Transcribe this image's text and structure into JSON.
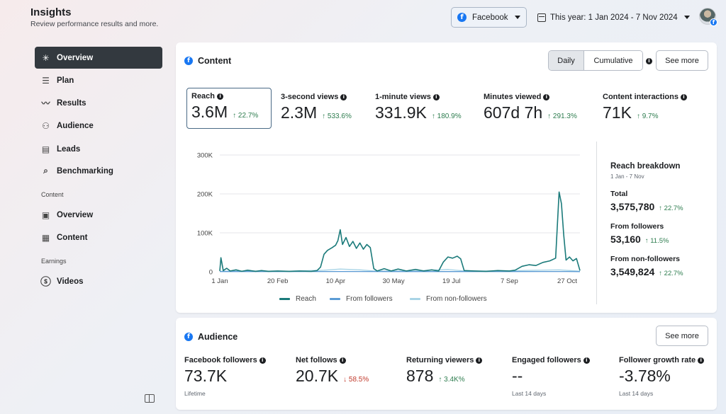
{
  "header": {
    "title": "Insights",
    "subtitle": "Review performance results and more.",
    "platform": "Facebook",
    "date_range": "This year: 1 Jan 2024 - 7 Nov 2024"
  },
  "sidebar": {
    "items": [
      {
        "label": "Overview",
        "icon": "overview-icon",
        "active": true
      },
      {
        "label": "Plan",
        "icon": "plan-icon"
      },
      {
        "label": "Results",
        "icon": "results-icon"
      },
      {
        "label": "Audience",
        "icon": "audience-icon"
      },
      {
        "label": "Leads",
        "icon": "leads-icon"
      },
      {
        "label": "Benchmarking",
        "icon": "benchmarking-icon"
      }
    ],
    "section_content": "Content",
    "content_items": [
      {
        "label": "Overview",
        "icon": "content-overview-icon"
      },
      {
        "label": "Content",
        "icon": "table-icon"
      }
    ],
    "section_earnings": "Earnings",
    "earnings_items": [
      {
        "label": "Videos",
        "icon": "dollar-icon"
      }
    ]
  },
  "content_card": {
    "title": "Content",
    "toggle": {
      "daily": "Daily",
      "cumulative": "Cumulative",
      "selected": "Daily"
    },
    "see_more": "See more",
    "metrics": [
      {
        "label": "Reach",
        "value": "3.6M",
        "delta": "↑ 22.7%",
        "direction": "up"
      },
      {
        "label": "3-second views",
        "value": "2.3M",
        "delta": "↑ 533.6%",
        "direction": "up"
      },
      {
        "label": "1-minute views",
        "value": "331.9K",
        "delta": "↑ 180.9%",
        "direction": "up"
      },
      {
        "label": "Minutes viewed",
        "value": "607d 7h",
        "delta": "↑ 291.3%",
        "direction": "up"
      },
      {
        "label": "Content interactions",
        "value": "71K",
        "delta": "↑ 9.7%",
        "direction": "up"
      }
    ],
    "breakdown": {
      "title": "Reach breakdown",
      "date": "1 Jan - 7 Nov",
      "rows": [
        {
          "label": "Total",
          "value": "3,575,780",
          "delta": "↑ 22.7%"
        },
        {
          "label": "From followers",
          "value": "53,160",
          "delta": "↑ 11.5%"
        },
        {
          "label": "From non-followers",
          "value": "3,549,824",
          "delta": "↑ 22.7%"
        }
      ]
    }
  },
  "chart_data": {
    "type": "line",
    "title": "",
    "xlabel": "",
    "ylabel": "",
    "ylim": [
      0,
      300000
    ],
    "y_ticks": [
      0,
      100000,
      200000,
      300000
    ],
    "y_tick_labels": [
      "0",
      "100K",
      "200K",
      "300K"
    ],
    "x_ticks": [
      "2024-01-01",
      "2024-02-20",
      "2024-04-10",
      "2024-05-30",
      "2024-07-19",
      "2024-09-07",
      "2024-10-27"
    ],
    "x_tick_labels": [
      "1 Jan",
      "20 Feb",
      "10 Apr",
      "30 May",
      "19 Jul",
      "7 Sep",
      "27 Oct"
    ],
    "x_range": [
      "2024-01-01",
      "2024-11-07"
    ],
    "grid": true,
    "legend_position": "bottom",
    "series": [
      {
        "name": "Reach",
        "color": "#1a7a7a",
        "points": [
          [
            "2024-01-01",
            2000
          ],
          [
            "2024-01-02",
            36000
          ],
          [
            "2024-01-04",
            3000
          ],
          [
            "2024-01-07",
            9000
          ],
          [
            "2024-01-10",
            2000
          ],
          [
            "2024-01-15",
            5000
          ],
          [
            "2024-01-20",
            1000
          ],
          [
            "2024-01-25",
            4000
          ],
          [
            "2024-02-01",
            1000
          ],
          [
            "2024-02-06",
            3000
          ],
          [
            "2024-02-12",
            1000
          ],
          [
            "2024-02-20",
            2000
          ],
          [
            "2024-03-01",
            1000
          ],
          [
            "2024-03-10",
            2000
          ],
          [
            "2024-03-20",
            1000
          ],
          [
            "2024-03-25",
            3000
          ],
          [
            "2024-03-28",
            12000
          ],
          [
            "2024-03-31",
            45000
          ],
          [
            "2024-04-03",
            55000
          ],
          [
            "2024-04-07",
            62000
          ],
          [
            "2024-04-10",
            68000
          ],
          [
            "2024-04-12",
            80000
          ],
          [
            "2024-04-14",
            108000
          ],
          [
            "2024-04-16",
            70000
          ],
          [
            "2024-04-19",
            88000
          ],
          [
            "2024-04-22",
            65000
          ],
          [
            "2024-04-25",
            78000
          ],
          [
            "2024-04-28",
            60000
          ],
          [
            "2024-05-01",
            74000
          ],
          [
            "2024-05-04",
            58000
          ],
          [
            "2024-05-07",
            70000
          ],
          [
            "2024-05-10",
            62000
          ],
          [
            "2024-05-13",
            8000
          ],
          [
            "2024-05-16",
            2000
          ],
          [
            "2024-05-22",
            8000
          ],
          [
            "2024-05-28",
            2000
          ],
          [
            "2024-06-03",
            7000
          ],
          [
            "2024-06-10",
            2000
          ],
          [
            "2024-06-18",
            6000
          ],
          [
            "2024-06-25",
            2000
          ],
          [
            "2024-07-02",
            5000
          ],
          [
            "2024-07-08",
            2000
          ],
          [
            "2024-07-12",
            25000
          ],
          [
            "2024-07-16",
            38000
          ],
          [
            "2024-07-20",
            35000
          ],
          [
            "2024-07-24",
            40000
          ],
          [
            "2024-07-27",
            33000
          ],
          [
            "2024-07-30",
            3000
          ],
          [
            "2024-08-08",
            2000
          ],
          [
            "2024-08-18",
            1000
          ],
          [
            "2024-08-28",
            3000
          ],
          [
            "2024-09-07",
            2000
          ],
          [
            "2024-09-12",
            4000
          ],
          [
            "2024-09-18",
            14000
          ],
          [
            "2024-09-24",
            18000
          ],
          [
            "2024-09-30",
            16000
          ],
          [
            "2024-10-06",
            24000
          ],
          [
            "2024-10-12",
            28000
          ],
          [
            "2024-10-17",
            35000
          ],
          [
            "2024-10-20",
            205000
          ],
          [
            "2024-10-22",
            175000
          ],
          [
            "2024-10-24",
            95000
          ],
          [
            "2024-10-26",
            30000
          ],
          [
            "2024-10-29",
            38000
          ],
          [
            "2024-11-01",
            28000
          ],
          [
            "2024-11-04",
            34000
          ],
          [
            "2024-11-07",
            3000
          ]
        ]
      },
      {
        "name": "From followers",
        "color": "#5b9bd5",
        "points": [
          [
            "2024-01-01",
            500
          ],
          [
            "2024-02-20",
            500
          ],
          [
            "2024-04-10",
            800
          ],
          [
            "2024-05-30",
            500
          ],
          [
            "2024-07-19",
            600
          ],
          [
            "2024-09-07",
            500
          ],
          [
            "2024-10-27",
            700
          ],
          [
            "2024-11-07",
            400
          ]
        ]
      },
      {
        "name": "From non-followers",
        "color": "#a8d4e6",
        "points": [
          [
            "2024-01-01",
            1500
          ],
          [
            "2024-02-01",
            2000
          ],
          [
            "2024-03-01",
            1500
          ],
          [
            "2024-03-31",
            4000
          ],
          [
            "2024-04-14",
            7000
          ],
          [
            "2024-05-01",
            5000
          ],
          [
            "2024-05-13",
            2000
          ],
          [
            "2024-06-15",
            2000
          ],
          [
            "2024-07-16",
            6000
          ],
          [
            "2024-07-30",
            2000
          ],
          [
            "2024-09-01",
            2000
          ],
          [
            "2024-10-01",
            4000
          ],
          [
            "2024-10-20",
            5000
          ],
          [
            "2024-11-07",
            1500
          ]
        ]
      }
    ]
  },
  "audience_card": {
    "title": "Audience",
    "see_more": "See more",
    "metrics": [
      {
        "label": "Facebook followers",
        "value": "73.7K",
        "delta": "",
        "note": "Lifetime"
      },
      {
        "label": "Net follows",
        "value": "20.7K",
        "delta": "↓ 58.5%",
        "direction": "down",
        "note": ""
      },
      {
        "label": "Returning viewers",
        "value": "878",
        "delta": "↑ 3.4K%",
        "direction": "up",
        "note": ""
      },
      {
        "label": "Engaged followers",
        "value": "--",
        "delta": "",
        "note": "Last 14 days"
      },
      {
        "label": "Follower growth rate",
        "value": "-3.78%",
        "delta": "",
        "note": "Last 14 days"
      }
    ]
  }
}
